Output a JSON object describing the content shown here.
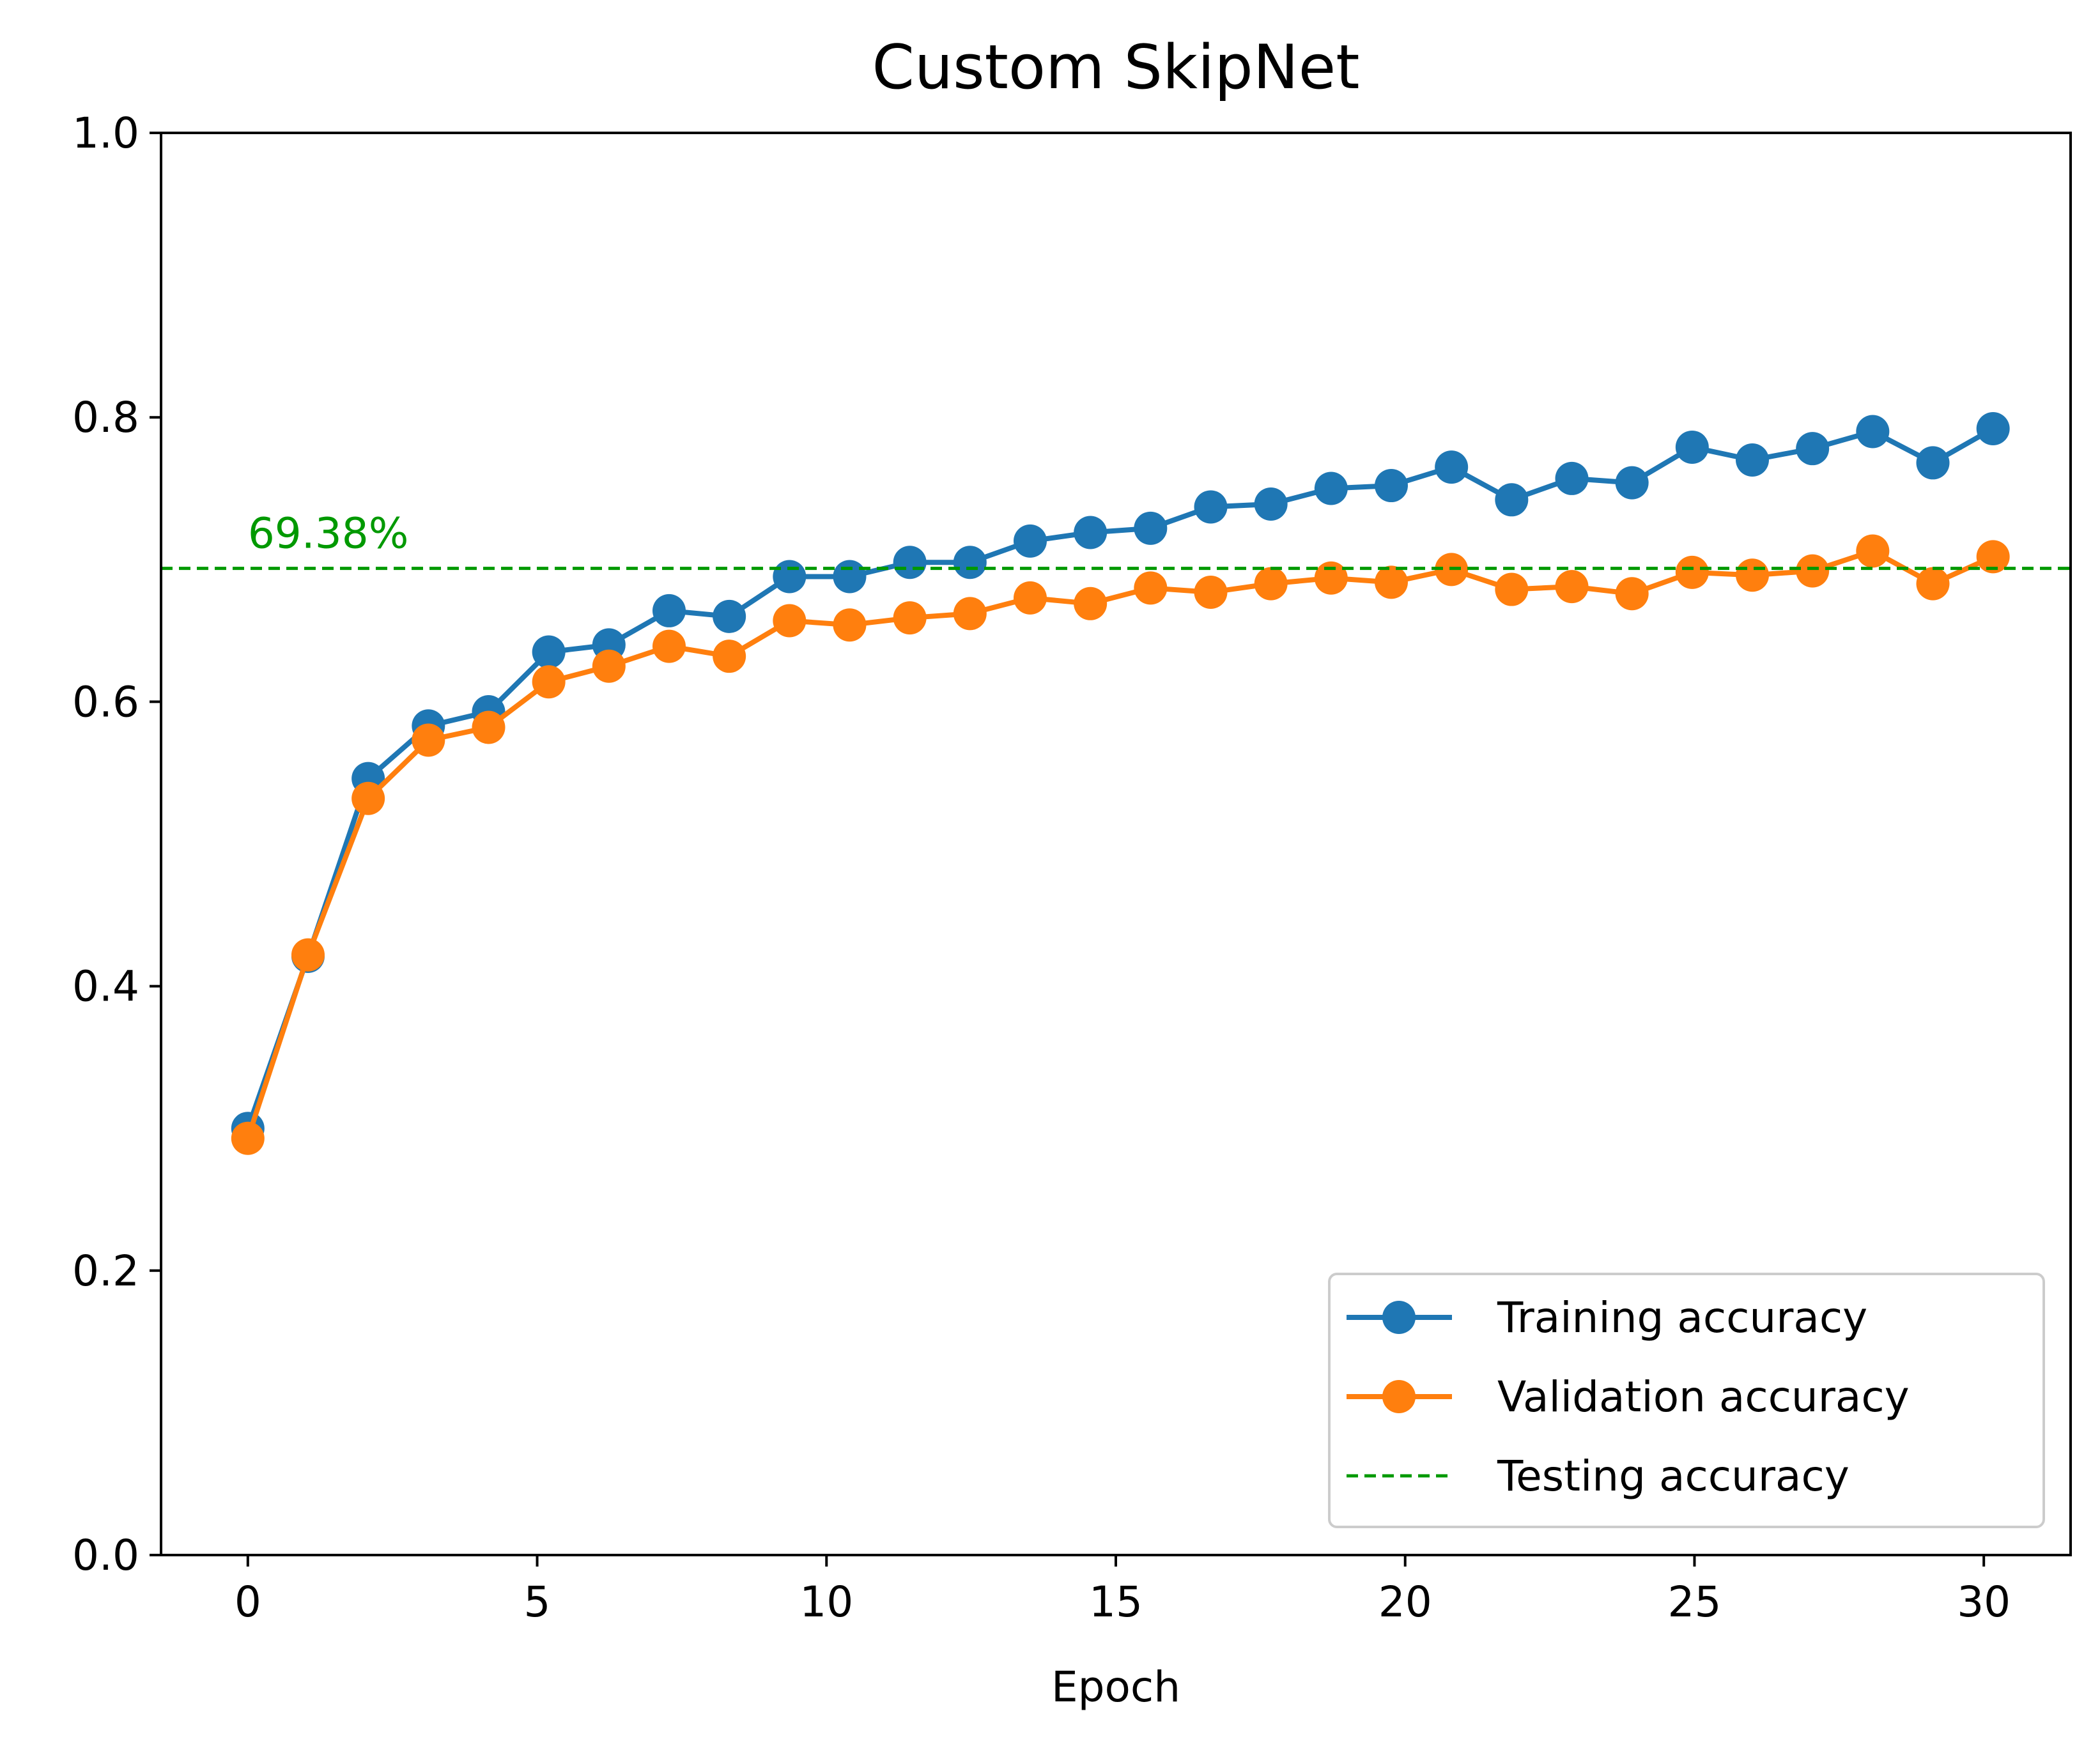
{
  "chart_data": {
    "type": "line",
    "title": "Custom SkipNet",
    "xlabel": "Epoch",
    "ylabel": "",
    "xlim": [
      -1.5,
      31.5
    ],
    "ylim": [
      0.0,
      1.0
    ],
    "xticks": [
      0,
      5,
      10,
      15,
      20,
      25,
      30
    ],
    "xtick_labels": [
      "0",
      "5",
      "10",
      "15",
      "20",
      "25",
      "30"
    ],
    "yticks": [
      0.0,
      0.2,
      0.4,
      0.6,
      0.8,
      1.0
    ],
    "ytick_labels": [
      "0.0",
      "0.2",
      "0.4",
      "0.6",
      "0.8",
      "1.0"
    ],
    "grid": false,
    "legend_position": "lower-right",
    "x": [
      0,
      1.04,
      2.08,
      3.12,
      4.16,
      5.2,
      6.24,
      7.28,
      8.32,
      9.36,
      10.4,
      11.44,
      12.48,
      13.52,
      14.56,
      15.6,
      16.64,
      17.68,
      18.72,
      19.76,
      20.8,
      21.84,
      22.88,
      23.92,
      24.96,
      26.0,
      27.04,
      28.08,
      29.12,
      30.16
    ],
    "series": [
      {
        "name": "Training accuracy",
        "color": "#1f77b4",
        "marker": "circle",
        "values": [
          0.3,
          0.421,
          0.546,
          0.583,
          0.593,
          0.635,
          0.64,
          0.664,
          0.66,
          0.688,
          0.688,
          0.698,
          0.698,
          0.713,
          0.719,
          0.722,
          0.737,
          0.739,
          0.75,
          0.752,
          0.765,
          0.742,
          0.757,
          0.754,
          0.779,
          0.77,
          0.778,
          0.79,
          0.768,
          0.792
        ]
      },
      {
        "name": "Validation accuracy",
        "color": "#ff7f0e",
        "marker": "circle",
        "values": [
          0.293,
          0.422,
          0.532,
          0.573,
          0.582,
          0.614,
          0.625,
          0.639,
          0.632,
          0.657,
          0.654,
          0.659,
          0.662,
          0.673,
          0.669,
          0.68,
          0.677,
          0.683,
          0.687,
          0.684,
          0.693,
          0.679,
          0.681,
          0.676,
          0.691,
          0.689,
          0.692,
          0.706,
          0.683,
          0.702
        ]
      }
    ],
    "reference_line": {
      "name": "Testing accuracy",
      "value": 0.6938,
      "color": "#009900",
      "style": "dashed",
      "annotation": "69.38%"
    }
  }
}
